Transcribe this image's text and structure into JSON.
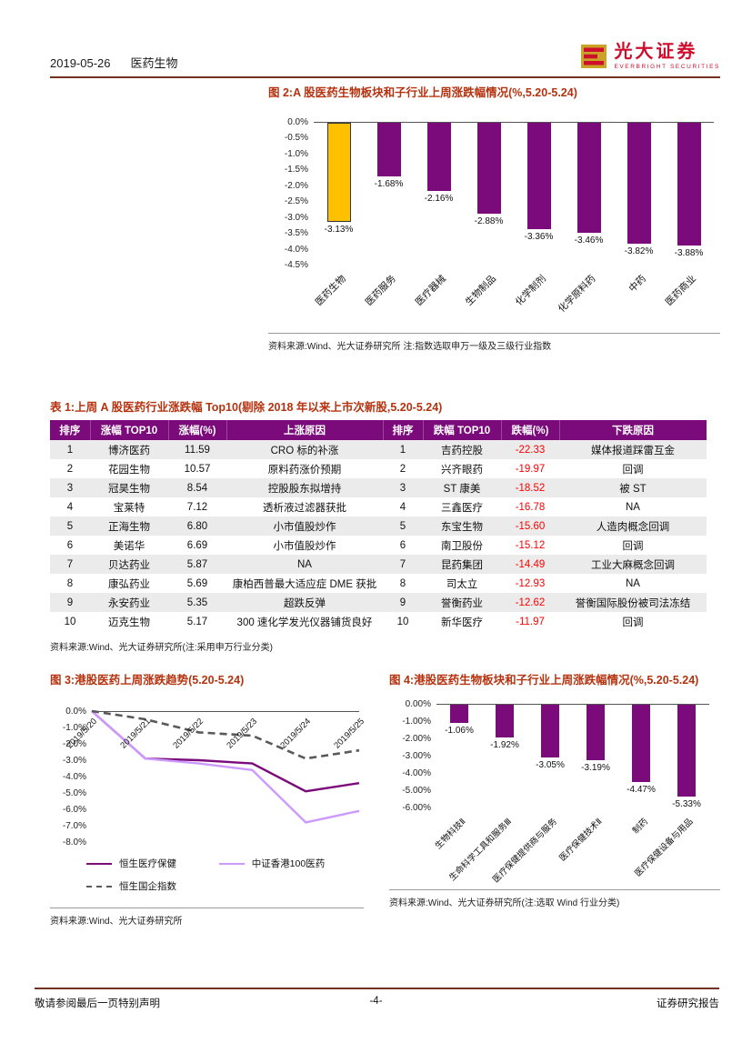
{
  "header": {
    "date": "2019-05-26",
    "sector": "医药生物",
    "logo_cn": "光大证券",
    "logo_en": "EVERBRIGHT SECURITIES"
  },
  "fig2": {
    "source": "资料来源:Wind、光大证券研究所    注:指数选取申万一级及三级行业指数"
  },
  "fig3": {
    "source": "资料来源:Wind、光大证券研究所"
  },
  "fig4": {
    "source": "资料来源:Wind、光大证券研究所(注:选取 Wind 行业分类)"
  },
  "table1": {
    "title": "表 1:上周 A 股医药行业涨跌幅 Top10(剔除 2018 年以来上市次新股,5.20-5.24)",
    "source": "资料来源:Wind、光大证券研究所(注:采用申万行业分类)",
    "headers": [
      "排序",
      "涨幅 TOP10",
      "涨幅(%)",
      "上涨原因",
      "排序",
      "跌幅 TOP10",
      "跌幅(%)",
      "下跌原因"
    ],
    "rows": [
      [
        "1",
        "博济医药",
        "11.59",
        "CRO 标的补涨",
        "1",
        "吉药控股",
        "-22.33",
        "媒体报道踩雷互金"
      ],
      [
        "2",
        "花园生物",
        "10.57",
        "原料药涨价预期",
        "2",
        "兴齐眼药",
        "-19.97",
        "回调"
      ],
      [
        "3",
        "冠昊生物",
        "8.54",
        "控股股东拟增持",
        "3",
        "ST 康美",
        "-18.52",
        "被 ST"
      ],
      [
        "4",
        "宝莱特",
        "7.12",
        "透析液过滤器获批",
        "4",
        "三鑫医疗",
        "-16.78",
        "NA"
      ],
      [
        "5",
        "正海生物",
        "6.80",
        "小市值股炒作",
        "5",
        "东宝生物",
        "-15.60",
        "人造肉概念回调"
      ],
      [
        "6",
        "美诺华",
        "6.69",
        "小市值股炒作",
        "6",
        "南卫股份",
        "-15.12",
        "回调"
      ],
      [
        "7",
        "贝达药业",
        "5.87",
        "NA",
        "7",
        "昆药集团",
        "-14.49",
        "工业大麻概念回调"
      ],
      [
        "8",
        "康弘药业",
        "5.69",
        "康柏西普最大适应症 DME 获批",
        "8",
        "司太立",
        "-12.93",
        "NA"
      ],
      [
        "9",
        "永安药业",
        "5.35",
        "超跌反弹",
        "9",
        "誉衡药业",
        "-12.62",
        "誉衡国际股份被司法冻结"
      ],
      [
        "10",
        "迈克生物",
        "5.17",
        "300 速化学发光仪器铺货良好",
        "10",
        "新华医疗",
        "-11.97",
        "回调"
      ]
    ]
  },
  "chart_data": [
    {
      "id": "fig2",
      "type": "bar",
      "title": "图 2:A 股医药生物板块和子行业上周涨跌幅情况(%,5.20-5.24)",
      "categories": [
        "医药生物",
        "医药服务",
        "医疗器械",
        "生物制品",
        "化学制剂",
        "化学原料药",
        "中药",
        "医药商业"
      ],
      "values": [
        -3.13,
        -1.68,
        -2.16,
        -2.88,
        -3.36,
        -3.46,
        -3.82,
        -3.88
      ],
      "value_labels": [
        "-3.13%",
        "-1.68%",
        "-2.16%",
        "-2.88%",
        "-3.36%",
        "-3.46%",
        "-3.82%",
        "-3.88%"
      ],
      "ylim": [
        -4.5,
        0
      ],
      "ytick_labels": [
        "0.0%",
        "-0.5%",
        "-1.0%",
        "-1.5%",
        "-2.0%",
        "-2.5%",
        "-3.0%",
        "-3.5%",
        "-4.0%",
        "-4.5%"
      ],
      "highlight_index": 0,
      "bar_color": "#7b0a7b",
      "highlight_color": "#ffc000",
      "grid": false,
      "legend": "none"
    },
    {
      "id": "fig3",
      "type": "line",
      "title": "图 3:港股医药上周涨跌趋势(5.20-5.24)",
      "x": [
        "2019/5/20",
        "2019/5/21",
        "2019/5/22",
        "2019/5/23",
        "2019/5/24",
        "2019/5/25"
      ],
      "series": [
        {
          "name": "恒生医疗保健",
          "color": "#7b0a7b",
          "dash": false,
          "values": [
            0,
            -2.9,
            -3.0,
            -3.2,
            -4.9,
            -4.4
          ]
        },
        {
          "name": "中证香港100医药",
          "color": "#cc99ff",
          "dash": false,
          "values": [
            0,
            -2.9,
            -3.2,
            -3.6,
            -6.8,
            -6.1
          ]
        },
        {
          "name": "恒生国企指数",
          "color": "#595959",
          "dash": true,
          "values": [
            0,
            -0.5,
            -1.3,
            -1.5,
            -2.9,
            -2.4
          ]
        }
      ],
      "ylim": [
        -8,
        0
      ],
      "ytick_labels": [
        "0.0%",
        "-1.0%",
        "-2.0%",
        "-3.0%",
        "-4.0%",
        "-5.0%",
        "-6.0%",
        "-7.0%",
        "-8.0%"
      ],
      "grid": false,
      "legend_position": "bottom"
    },
    {
      "id": "fig4",
      "type": "bar",
      "title": "图 4:港股医药生物板块和子行业上周涨跌幅情况(%,5.20-5.24)",
      "categories": [
        "生物科技Ⅱ",
        "生命科学工具和服务Ⅲ",
        "医疗保健提供商与服务",
        "医疗保健技术Ⅱ",
        "制药",
        "医疗保健设备与用品"
      ],
      "values": [
        -1.06,
        -1.92,
        -3.05,
        -3.19,
        -4.47,
        -5.33
      ],
      "value_labels": [
        "-1.06%",
        "-1.92%",
        "-3.05%",
        "-3.19%",
        "-4.47%",
        "-5.33%"
      ],
      "ylim": [
        -6,
        0
      ],
      "ytick_labels": [
        "0.00%",
        "-1.00%",
        "-2.00%",
        "-3.00%",
        "-4.00%",
        "-5.00%",
        "-6.00%"
      ],
      "highlight_index": -1,
      "bar_color": "#7b0a7b",
      "grid": false,
      "legend": "none"
    }
  ],
  "footer": {
    "left": "敬请参阅最后一页特别声明",
    "page": "-4-",
    "right": "证券研究报告"
  }
}
